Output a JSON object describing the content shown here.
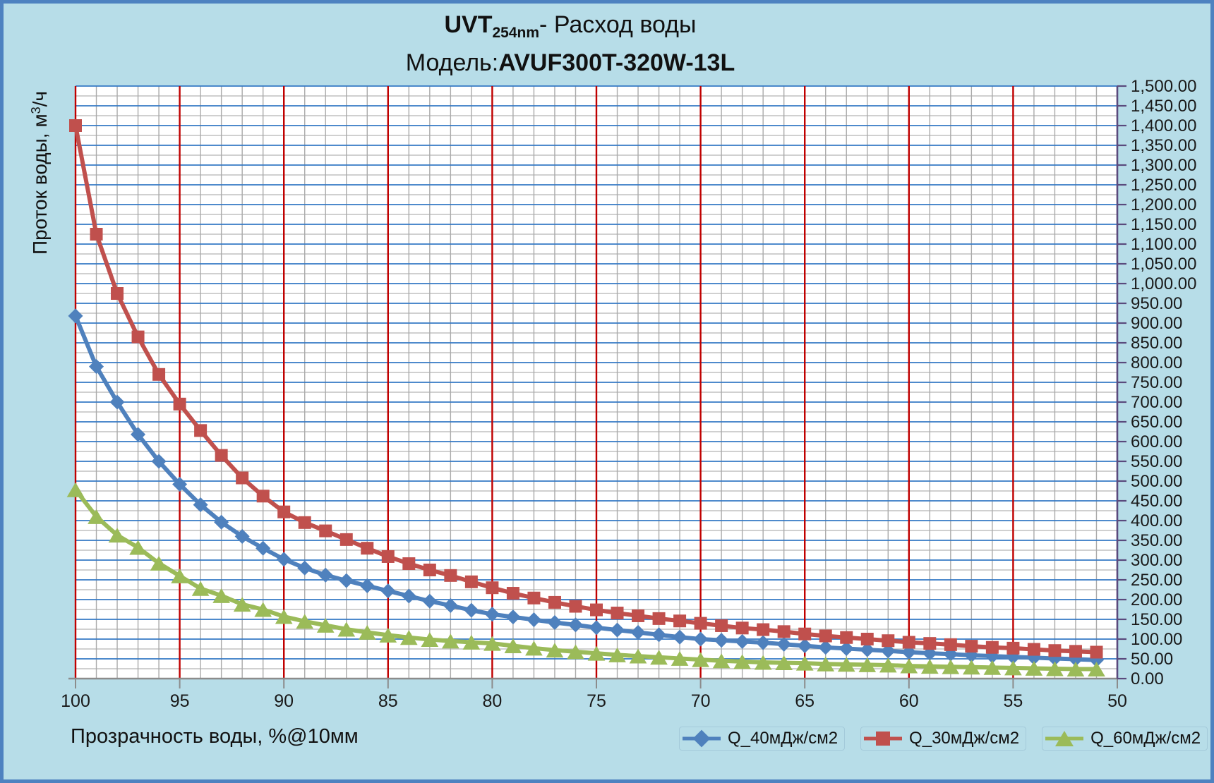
{
  "title": {
    "uvt": "UVT",
    "uvt_subscript": "254nm",
    "line1_rest": "- Расход воды",
    "model_label": "Модель:",
    "model": "AVUF300T-320W-13L"
  },
  "colors": {
    "background": "#b7dde8",
    "frame_border": "#4e82c0",
    "plot_background": "#ffffff",
    "major_h_gridline": "#3579c5",
    "minor_h_gridline": "#b3b3b3",
    "major_v_gridline": "#c00000",
    "minor_v_gridline": "#aaaaaa",
    "bottom_axis": "#8c8c8c",
    "right_axis": "#5a4a7d",
    "tick_label": "#1a1a1a"
  },
  "legend": {
    "items": [
      {
        "label": "Q_40мДж/см2",
        "color": "#4f81bd",
        "marker": "diamond"
      },
      {
        "label": "Q_30мДж/см2",
        "color": "#c0504d",
        "marker": "square"
      },
      {
        "label": "Q_60мДж/см2",
        "color": "#9bbb59",
        "marker": "triangle"
      }
    ]
  },
  "chart_data": {
    "type": "line",
    "title": "UVT 254nm - Расход воды / Модель: AVUF300T-320W-13L",
    "xlabel": "Прозрачность воды, %@10мм",
    "ylabel": "Проток воды, м3/ч",
    "ylabel_parts": {
      "prefix": "Проток воды, м",
      "sup": "3",
      "suffix": "/ч"
    },
    "x_axis_reversed": true,
    "xlim": [
      100,
      50
    ],
    "ylim": [
      0,
      1500
    ],
    "y_tick_step": 50,
    "x_major_step": 5,
    "x_minor_step": 1,
    "y_minor_step": 25,
    "grid": true,
    "legend_position": "bottom-right",
    "x_major_ticks": [
      100,
      95,
      90,
      85,
      80,
      75,
      70,
      65,
      60,
      55,
      50
    ],
    "x": [
      100,
      99,
      98,
      97,
      96,
      95,
      94,
      93,
      92,
      91,
      90,
      89,
      88,
      87,
      86,
      85,
      84,
      83,
      82,
      81,
      80,
      79,
      78,
      77,
      76,
      75,
      74,
      73,
      72,
      71,
      70,
      69,
      68,
      67,
      66,
      65,
      64,
      63,
      62,
      61,
      60,
      59,
      58,
      57,
      56,
      55,
      54,
      53,
      52,
      51
    ],
    "series": [
      {
        "name": "Q_40мДж/см2",
        "color": "#4f81bd",
        "marker": "diamond",
        "values": [
          918,
          790,
          700,
          618,
          550,
          492,
          440,
          396,
          360,
          330,
          302,
          280,
          262,
          248,
          235,
          222,
          209,
          196,
          185,
          173,
          163,
          156,
          149,
          142,
          136,
          129,
          123,
          117,
          111,
          105,
          100,
          97,
          94,
          91,
          87,
          83,
          79,
          76,
          73,
          70,
          67,
          64,
          62,
          59,
          57,
          55,
          53,
          51,
          49,
          47
        ]
      },
      {
        "name": "Q_30мДж/см2",
        "color": "#c0504d",
        "marker": "square",
        "values": [
          1400,
          1125,
          975,
          865,
          770,
          695,
          628,
          565,
          508,
          462,
          422,
          395,
          374,
          352,
          330,
          309,
          291,
          275,
          261,
          245,
          230,
          216,
          204,
          193,
          183,
          174,
          166,
          159,
          152,
          146,
          140,
          134,
          128,
          124,
          119,
          113,
          108,
          104,
          100,
          96,
          92,
          89,
          86,
          82,
          79,
          77,
          74,
          71,
          69,
          67
        ]
      },
      {
        "name": "Q_60мДж/см2",
        "color": "#9bbb59",
        "marker": "triangle",
        "values": [
          478,
          410,
          363,
          332,
          292,
          260,
          228,
          210,
          188,
          175,
          157,
          145,
          135,
          125,
          117,
          110,
          104,
          99,
          95,
          92,
          89,
          83,
          77,
          72,
          68,
          64,
          60,
          57,
          54,
          51,
          48,
          45,
          43,
          41,
          40,
          39,
          37,
          36,
          35,
          34,
          32,
          31,
          30,
          29,
          28,
          27,
          26,
          25,
          24,
          24
        ]
      }
    ]
  }
}
